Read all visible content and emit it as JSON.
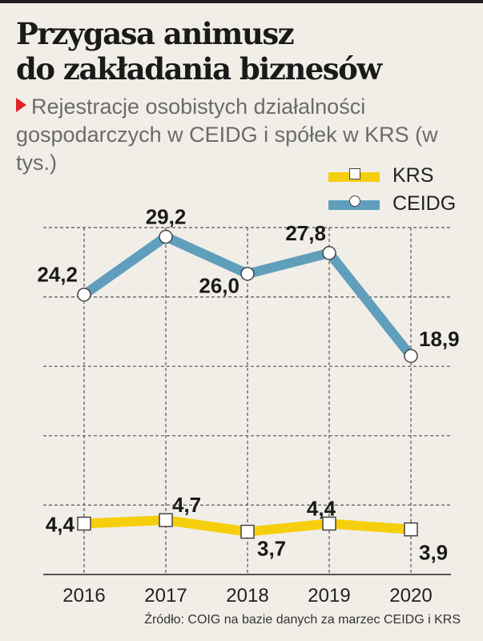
{
  "title": [
    "Przygasa animusz",
    "do zakładania biznesów"
  ],
  "subtitle": "Rejestracje osobistych działalności gospodarczych w CEIDG i spółek w KRS (w tys.)",
  "source": "Źródło: COIG na bazie danych za marzec CEIDG i KRS",
  "colors": {
    "krs": "#f6cf0c",
    "ceidg": "#609fbc",
    "accent": "#e3202b",
    "background": "#f1eee8"
  },
  "legend": [
    {
      "label": "KRS",
      "marker": "square"
    },
    {
      "label": "CEIDG",
      "marker": "circle"
    }
  ],
  "chart_data": {
    "type": "line",
    "title": "Przygasa animusz do zakładania biznesów",
    "subtitle": "Rejestracje osobistych działalności gospodarczych w CEIDG i spółek w KRS (w tys.)",
    "xlabel": "",
    "ylabel": "",
    "categories": [
      "2016",
      "2017",
      "2018",
      "2019",
      "2020"
    ],
    "ylim": [
      0,
      30
    ],
    "yticks": [
      0,
      6,
      12,
      18,
      24,
      30
    ],
    "grid": true,
    "legend_position": "top-right",
    "series": [
      {
        "name": "KRS",
        "values": [
          4.4,
          4.7,
          3.7,
          4.4,
          3.9
        ],
        "labels": [
          "4,4",
          "4,7",
          "3,7",
          "4,4",
          "3,9"
        ]
      },
      {
        "name": "CEIDG",
        "values": [
          24.2,
          29.2,
          26.0,
          27.8,
          18.9
        ],
        "labels": [
          "24,2",
          "29,2",
          "26,0",
          "27,8",
          "18,9"
        ]
      }
    ]
  }
}
